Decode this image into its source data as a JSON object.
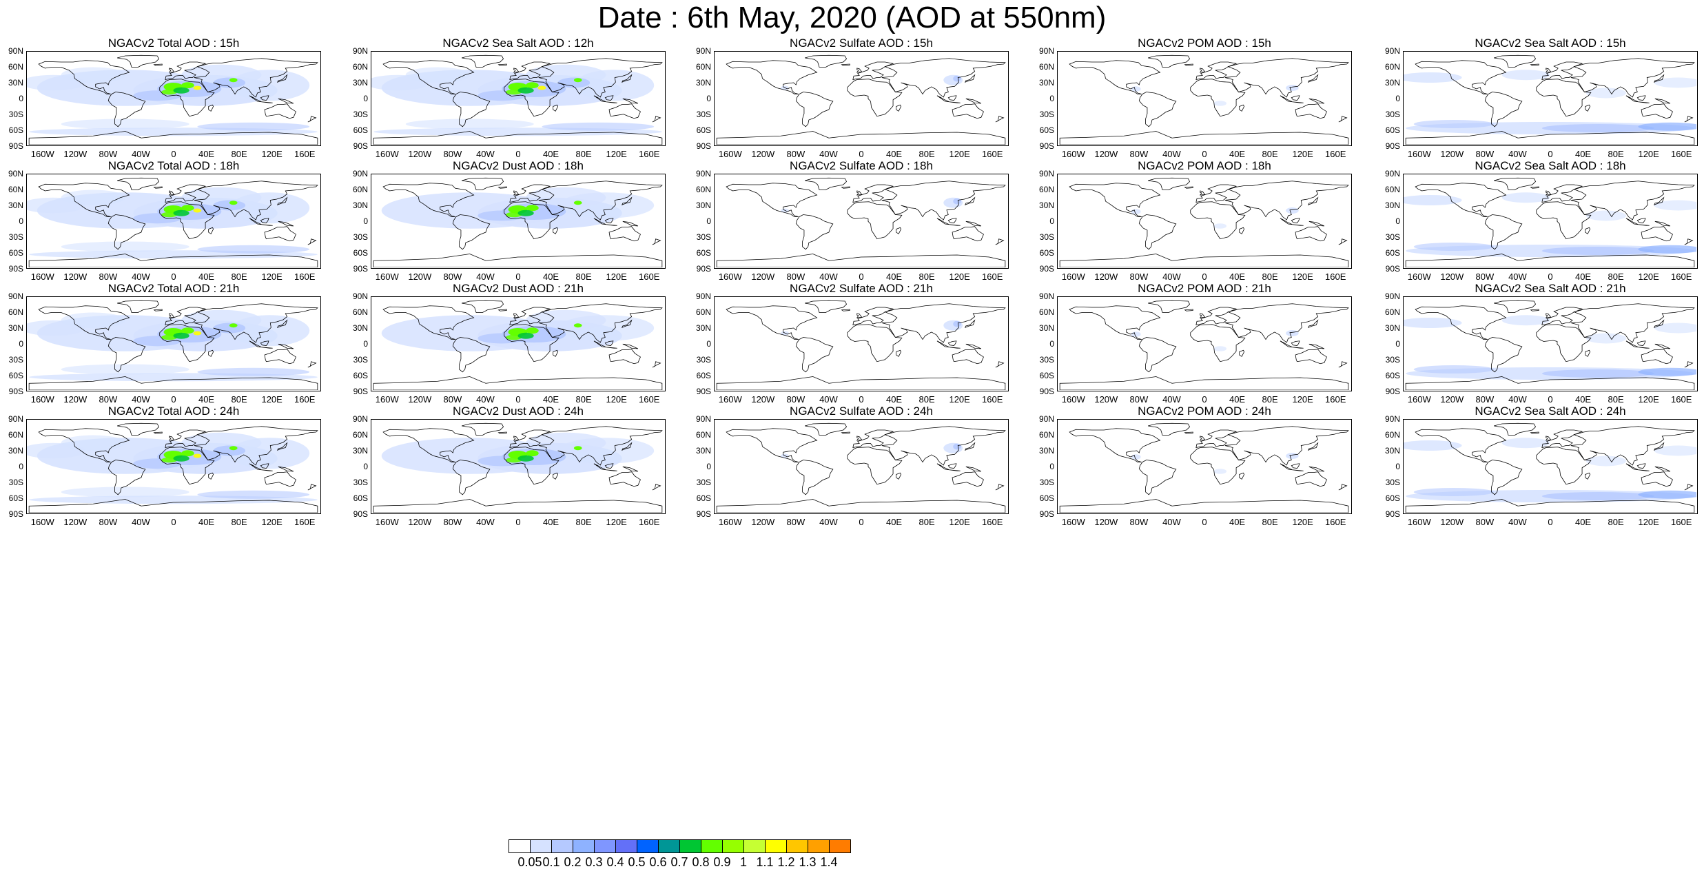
{
  "title": "Date : 6th May, 2020 (AOD at 550nm)",
  "lat_labels": [
    "90N",
    "60N",
    "30N",
    "0",
    "30S",
    "60S",
    "90S"
  ],
  "lon_labels": [
    "160W",
    "120W",
    "80W",
    "40W",
    "0",
    "40E",
    "80E",
    "120E",
    "160E"
  ],
  "rows": [
    {
      "panels": [
        {
          "title": "NGACv2 Total AOD : 15h",
          "field": "total"
        },
        {
          "title": "NGACv2 Sea Salt  AOD : 12h",
          "field": "total"
        },
        {
          "title": "NGACv2 Sulfate AOD : 15h",
          "field": "sulfate"
        },
        {
          "title": "NGACv2 POM AOD : 15h",
          "field": "pom"
        },
        {
          "title": "NGACv2 Sea Salt  AOD : 15h",
          "field": "seasalt"
        }
      ]
    },
    {
      "panels": [
        {
          "title": "NGACv2 Total AOD : 18h",
          "field": "total"
        },
        {
          "title": "NGACv2 Dust AOD : 18h",
          "field": "dust"
        },
        {
          "title": "NGACv2 Sulfate AOD : 18h",
          "field": "sulfate"
        },
        {
          "title": "NGACv2 POM AOD : 18h",
          "field": "pom"
        },
        {
          "title": "NGACv2 Sea Salt  AOD : 18h",
          "field": "seasalt"
        }
      ]
    },
    {
      "panels": [
        {
          "title": "NGACv2 Total AOD : 21h",
          "field": "total"
        },
        {
          "title": "NGACv2 Dust AOD : 21h",
          "field": "dust"
        },
        {
          "title": "NGACv2 Sulfate AOD : 21h",
          "field": "sulfate"
        },
        {
          "title": "NGACv2 POM AOD : 21h",
          "field": "pom"
        },
        {
          "title": "NGACv2 Sea Salt  AOD : 21h",
          "field": "seasalt"
        }
      ]
    },
    {
      "panels": [
        {
          "title": "NGACv2 Total AOD : 24h",
          "field": "total"
        },
        {
          "title": "NGACv2 Dust AOD : 24h",
          "field": "dust"
        },
        {
          "title": "NGACv2 Sulfate AOD : 24h",
          "field": "sulfate"
        },
        {
          "title": "NGACv2 POM AOD : 24h",
          "field": "pom"
        },
        {
          "title": "NGACv2 Sea Salt  AOD : 24h",
          "field": "seasalt"
        }
      ]
    }
  ],
  "colorbar": {
    "labels": [
      "0.05",
      "0.1",
      "0.2",
      "0.3",
      "0.4",
      "0.5",
      "0.6",
      "0.7",
      "0.8",
      "0.9",
      "1",
      "1.1",
      "1.2",
      "1.3",
      "1.4"
    ],
    "colors": [
      "#ffffff",
      "#d6e2ff",
      "#b5c9ff",
      "#8eb2ff",
      "#7f96ff",
      "#6370f8",
      "#0063ff",
      "#009696",
      "#00c633",
      "#63ff00",
      "#96ff00",
      "#c6ff33",
      "#ffff00",
      "#ffc600",
      "#ffa000",
      "#ff7c00",
      "#ff1900"
    ]
  }
}
